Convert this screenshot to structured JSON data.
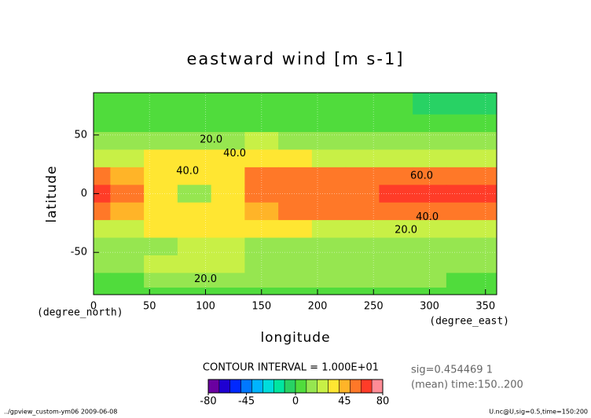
{
  "chart_data": {
    "type": "contour",
    "title": "eastward wind [m s-1]",
    "x_label": "longitude",
    "y_label": "latitude",
    "x_units": "(degree_east)",
    "y_units": "(degree_north)",
    "x": [
      0,
      30,
      60,
      90,
      120,
      150,
      180,
      210,
      240,
      270,
      300,
      330,
      360
    ],
    "y": [
      85,
      75,
      60,
      45,
      30,
      15,
      0,
      -15,
      -30,
      -45,
      -60,
      -75,
      -85
    ],
    "z": [
      [
        5,
        5,
        5,
        5,
        5,
        5,
        5,
        5,
        5,
        3,
        -5,
        -5,
        -5
      ],
      [
        5,
        5,
        5,
        5,
        5,
        5,
        5,
        5,
        5,
        5,
        -3,
        -5,
        -5
      ],
      [
        8,
        8,
        8,
        8,
        8,
        8,
        8,
        8,
        8,
        5,
        3,
        5,
        5
      ],
      [
        15,
        15,
        15,
        15,
        18,
        22,
        15,
        12,
        12,
        12,
        12,
        12,
        15
      ],
      [
        25,
        25,
        30,
        35,
        35,
        35,
        30,
        28,
        28,
        28,
        28,
        28,
        25
      ],
      [
        55,
        45,
        35,
        35,
        35,
        55,
        55,
        55,
        55,
        55,
        55,
        55,
        55
      ],
      [
        65,
        55,
        35,
        15,
        35,
        55,
        55,
        55,
        55,
        65,
        65,
        65,
        65
      ],
      [
        55,
        45,
        35,
        35,
        35,
        45,
        55,
        55,
        55,
        55,
        55,
        55,
        55
      ],
      [
        25,
        25,
        30,
        30,
        30,
        30,
        30,
        28,
        28,
        28,
        25,
        25,
        25
      ],
      [
        15,
        15,
        18,
        22,
        22,
        18,
        18,
        18,
        18,
        18,
        18,
        12,
        15
      ],
      [
        12,
        15,
        22,
        22,
        22,
        15,
        15,
        15,
        15,
        15,
        15,
        12,
        12
      ],
      [
        8,
        8,
        12,
        12,
        12,
        12,
        10,
        10,
        10,
        10,
        10,
        8,
        8
      ],
      [
        5,
        5,
        5,
        5,
        5,
        5,
        5,
        5,
        5,
        5,
        5,
        5,
        5
      ]
    ],
    "xlim": [
      0,
      360
    ],
    "ylim": [
      -86,
      86
    ],
    "xticks": [
      0,
      50,
      100,
      150,
      200,
      250,
      300,
      350
    ],
    "yticks": [
      -50,
      0,
      50
    ],
    "grid": true,
    "levels": [
      -80,
      -70,
      -60,
      -50,
      -40,
      -30,
      -20,
      -10,
      0,
      10,
      20,
      30,
      40,
      50,
      60,
      70,
      80
    ],
    "colors": [
      "#6a00a0",
      "#1e00d2",
      "#0028ff",
      "#0078ff",
      "#00b4ff",
      "#00dcdc",
      "#00e6a0",
      "#28d264",
      "#50dc3c",
      "#96e650",
      "#c8f046",
      "#ffe632",
      "#ffb428",
      "#ff7828",
      "#ff3c28",
      "#ff8c96"
    ],
    "colorbar_ticks": [
      -80,
      -45,
      0,
      45,
      80
    ],
    "contour_labels": [
      {
        "text": "20.0",
        "lon": 105,
        "lat": 46
      },
      {
        "text": "40.0",
        "lon": 126,
        "lat": 34
      },
      {
        "text": "40.0",
        "lon": 84,
        "lat": 19
      },
      {
        "text": "60.0",
        "lon": 293,
        "lat": 15
      },
      {
        "text": "40.0",
        "lon": 298,
        "lat": -20
      },
      {
        "text": "20.0",
        "lon": 279,
        "lat": -31
      },
      {
        "text": "20.0",
        "lon": 100,
        "lat": -73
      }
    ],
    "contour_interval": "CONTOUR INTERVAL = 1.000E+01",
    "notes": [
      "sig=0.454469 1",
      "(mean) time:150..200"
    ],
    "footer_left": "../gpview_custom-ym06  2009-06-08",
    "footer_right": "U.nc@U,sig=0.5,time=150:200"
  }
}
